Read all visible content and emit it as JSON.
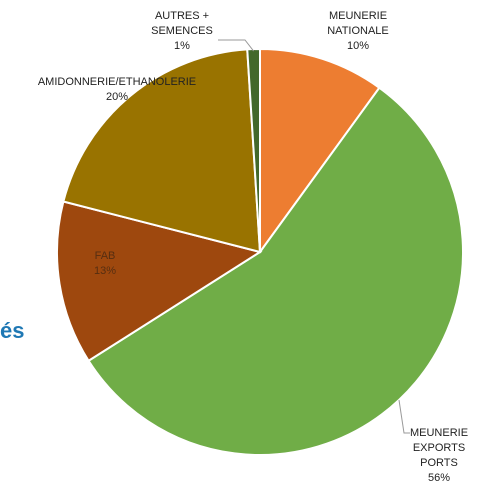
{
  "side_text": "és",
  "chart_data": {
    "type": "pie",
    "title": "",
    "start_angle_deg": 0,
    "direction": "clockwise",
    "slices": [
      {
        "id": "meunerie-nationale",
        "lines": [
          "MEUNERIE",
          "NATIONALE"
        ],
        "value": 10,
        "pct_label": "10%",
        "color": "#ED7D31"
      },
      {
        "id": "exports",
        "lines": [
          "MEUNERIE",
          "EXPORTS",
          "PORTS"
        ],
        "value": 56,
        "pct_label": "56%",
        "color": "#70AD47"
      },
      {
        "id": "fab",
        "lines": [
          "FAB"
        ],
        "value": 13,
        "pct_label": "13%",
        "color": "#9E480E"
      },
      {
        "id": "amidonnerie",
        "lines": [
          "AMIDONNERIE/ETHANOLERIE"
        ],
        "value": 20,
        "pct_label": "20%",
        "color": "#997300"
      },
      {
        "id": "autres",
        "lines": [
          "AUTRES +",
          "SEMENCES"
        ],
        "value": 1,
        "pct_label": "1%",
        "color": "#43682B"
      }
    ]
  }
}
